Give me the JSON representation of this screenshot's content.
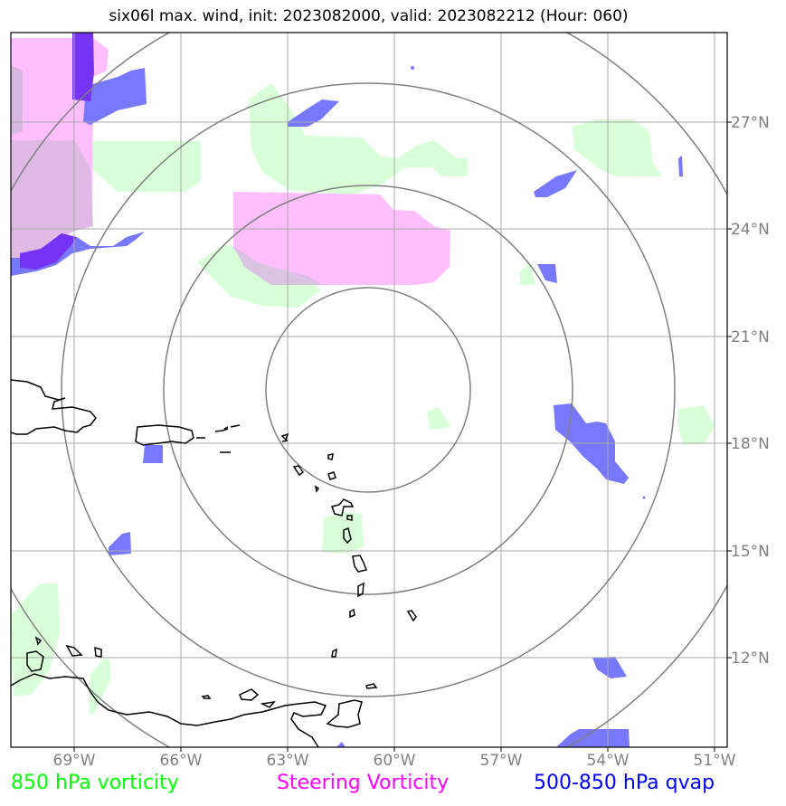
{
  "title": "six06l max. wind, init: 2023082000, valid: 2023082212 (Hour: 060)",
  "map_data": {
    "type": "map",
    "extent": {
      "lon": [
        -70.0,
        -51.0
      ],
      "lat": [
        9.5,
        29.5
      ]
    },
    "lon_ticks": [
      {
        "value": -69,
        "label": "69°W"
      },
      {
        "value": -66,
        "label": "66°W"
      },
      {
        "value": -63,
        "label": "63°W"
      },
      {
        "value": -60,
        "label": "60°W"
      },
      {
        "value": -57,
        "label": "57°W"
      },
      {
        "value": -54,
        "label": "54°W"
      },
      {
        "value": -51,
        "label": "51°W"
      }
    ],
    "lat_ticks": [
      {
        "value": 27,
        "label": "27°N"
      },
      {
        "value": 24,
        "label": "24°N"
      },
      {
        "value": 21,
        "label": "21°N"
      },
      {
        "value": 18,
        "label": "18°N"
      },
      {
        "value": 15,
        "label": "15°N"
      },
      {
        "value": 12,
        "label": "12°N"
      }
    ],
    "range_rings_center": {
      "lon": -60.7,
      "lat": 19.4
    },
    "range_ring_radii_deg": [
      2.85,
      5.7,
      8.55,
      11.4
    ]
  },
  "legend": [
    {
      "label": "850 hPa vorticity",
      "color": "#00ff00"
    },
    {
      "label": "Steering Vorticity",
      "color": "#ff00ff"
    },
    {
      "label": "500-850 hPa qvap",
      "color": "#0000ff"
    }
  ],
  "colors": {
    "vorticity_fill": "#d9ffd9",
    "steering_fill": "#ffbfff",
    "qvap_fill": "#7878ff",
    "qvap_dark": "#7433f5",
    "grid": "#a8a8a8",
    "ring": "#808080"
  }
}
